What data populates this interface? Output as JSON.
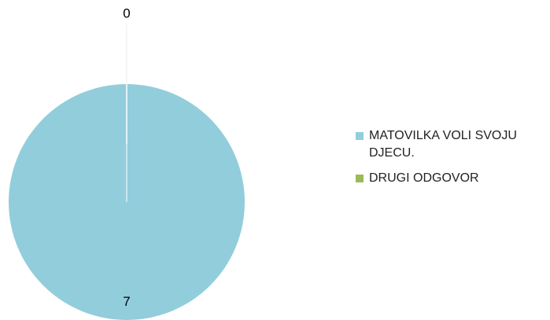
{
  "chart_data": {
    "type": "pie",
    "categories": [
      "MATOVILKA VOLI SVOJU DJECU.",
      "DRUGI ODGOVOR"
    ],
    "values": [
      7,
      0
    ],
    "colors": [
      "#92cddc",
      "#9bbb59"
    ],
    "legend": "right"
  }
}
